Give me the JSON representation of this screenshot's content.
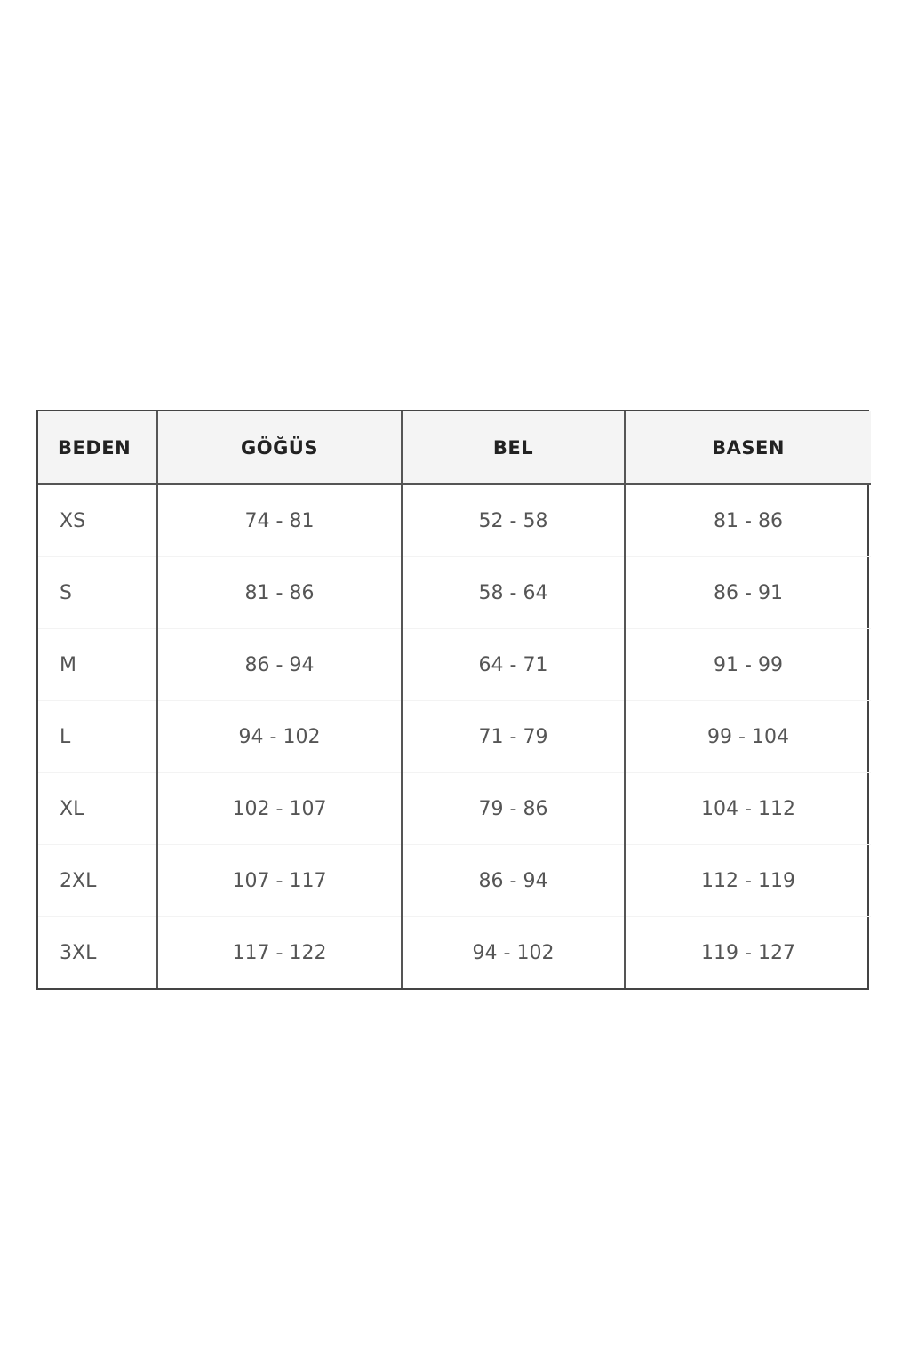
{
  "size_chart": {
    "headers": [
      "BEDEN",
      "GÖĞÜS",
      "BEL",
      "BASEN"
    ],
    "rows": [
      [
        "XS",
        "74 - 81",
        "52 - 58",
        "81 - 86"
      ],
      [
        "S",
        "81 - 86",
        "58 - 64",
        "86 - 91"
      ],
      [
        "M",
        "86 - 94",
        "64 - 71",
        "91 - 99"
      ],
      [
        "L",
        "94 - 102",
        "71 - 79",
        "99 - 104"
      ],
      [
        "XL",
        "102 - 107",
        "79 - 86",
        "104 - 112"
      ],
      [
        "2XL",
        "107 - 117",
        "86 - 94",
        "112 - 119"
      ],
      [
        "3XL",
        "117 - 122",
        "94 - 102",
        "119 - 127"
      ]
    ]
  }
}
